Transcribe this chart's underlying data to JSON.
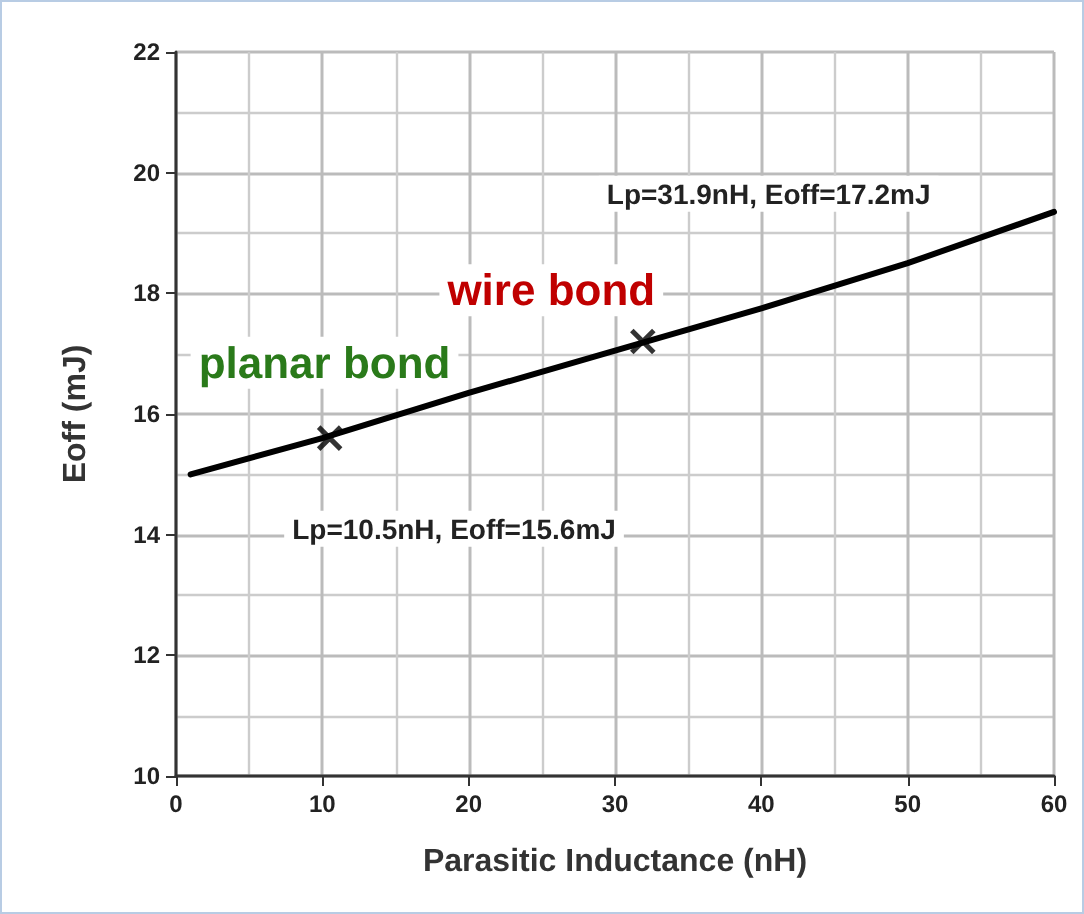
{
  "chart_data": {
    "type": "line",
    "xlabel": "Parasitic Inductance (nH)",
    "ylabel": "Eoff (mJ)",
    "xlim": [
      0,
      60
    ],
    "xticks": [
      0,
      10,
      20,
      30,
      40,
      50,
      60
    ],
    "ylim": [
      10,
      22
    ],
    "yticks": [
      10,
      12,
      14,
      16,
      18,
      20,
      22
    ],
    "grid": true,
    "series": [
      {
        "color": "#000000",
        "marker": "none",
        "x": [
          1,
          10,
          20,
          30,
          40,
          50,
          60
        ],
        "values": [
          15.0,
          15.6,
          16.35,
          17.05,
          17.75,
          18.5,
          19.35
        ]
      },
      {
        "type": "scatter",
        "color": "#000000",
        "marker": "cross",
        "x": [
          10.5,
          31.9
        ],
        "values": [
          15.6,
          17.2
        ]
      }
    ],
    "annotations": [
      "Lp=10.5nH, Eoff=15.6mJ",
      "Lp=31.9nH, Eoff=17.2mJ",
      "planar bond",
      "wire bond"
    ]
  }
}
